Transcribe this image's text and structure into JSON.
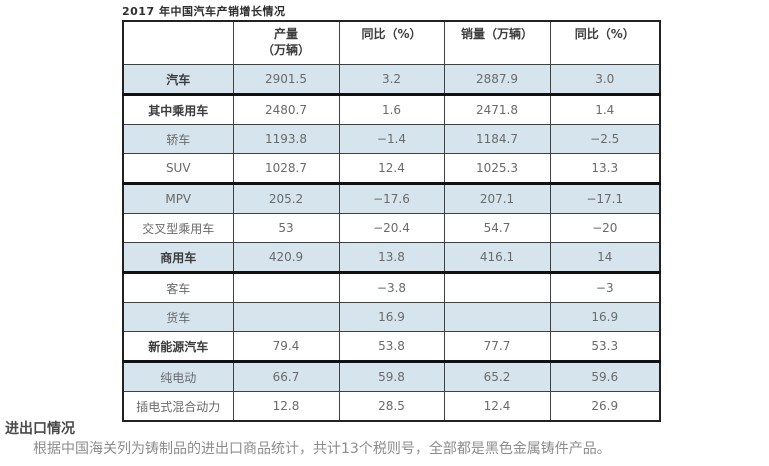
{
  "title": "2017 年中国汽车产销增长情况",
  "table": {
    "headers": {
      "label": "",
      "production": "产量\n（万辆）",
      "production_yoy": "同比（%）",
      "sales": "销量（万辆）",
      "sales_yoy": "同比（%）"
    },
    "rows": [
      {
        "label": "汽车",
        "values": [
          "2901.5",
          "3.2",
          "2887.9",
          "3.0"
        ],
        "bold": true,
        "shaded": true,
        "thick_bottom": true
      },
      {
        "label": "其中乘用车",
        "values": [
          "2480.7",
          "1.6",
          "2471.8",
          "1.4"
        ],
        "bold": true,
        "shaded": false,
        "thick_bottom": false
      },
      {
        "label": "轿车",
        "values": [
          "1193.8",
          "−1.4",
          "1184.7",
          "−2.5"
        ],
        "bold": false,
        "shaded": true,
        "thick_bottom": false
      },
      {
        "label": "SUV",
        "values": [
          "1028.7",
          "12.4",
          "1025.3",
          "13.3"
        ],
        "bold": false,
        "shaded": false,
        "thick_bottom": true
      },
      {
        "label": "MPV",
        "values": [
          "205.2",
          "−17.6",
          "207.1",
          "−17.1"
        ],
        "bold": false,
        "shaded": true,
        "thick_bottom": false
      },
      {
        "label": "交叉型乘用车",
        "values": [
          "53",
          "−20.4",
          "54.7",
          "−20"
        ],
        "bold": false,
        "shaded": false,
        "thick_bottom": false
      },
      {
        "label": "商用车",
        "values": [
          "420.9",
          "13.8",
          "416.1",
          "14"
        ],
        "bold": true,
        "shaded": true,
        "thick_bottom": true
      },
      {
        "label": "客车",
        "values": [
          "",
          "−3.8",
          "",
          "−3"
        ],
        "bold": false,
        "shaded": false,
        "thick_bottom": false
      },
      {
        "label": "货车",
        "values": [
          "",
          "16.9",
          "",
          "16.9"
        ],
        "bold": false,
        "shaded": true,
        "thick_bottom": false
      },
      {
        "label": "新能源汽车",
        "values": [
          "79.4",
          "53.8",
          "77.7",
          "53.3"
        ],
        "bold": true,
        "shaded": false,
        "thick_bottom": true
      },
      {
        "label": "纯电动",
        "values": [
          "66.7",
          "59.8",
          "65.2",
          "59.6"
        ],
        "bold": false,
        "shaded": true,
        "thick_bottom": false
      },
      {
        "label": "插电式混合动力",
        "values": [
          "12.8",
          "28.5",
          "12.4",
          "26.9"
        ],
        "bold": false,
        "shaded": false,
        "thick_bottom": false
      }
    ]
  },
  "footer": {
    "heading": "进出口情况",
    "paragraph": "根据中国海关列为铸制品的进出口商品统计，共计13个税则号，全部都是黑色金属铸件产品。"
  }
}
